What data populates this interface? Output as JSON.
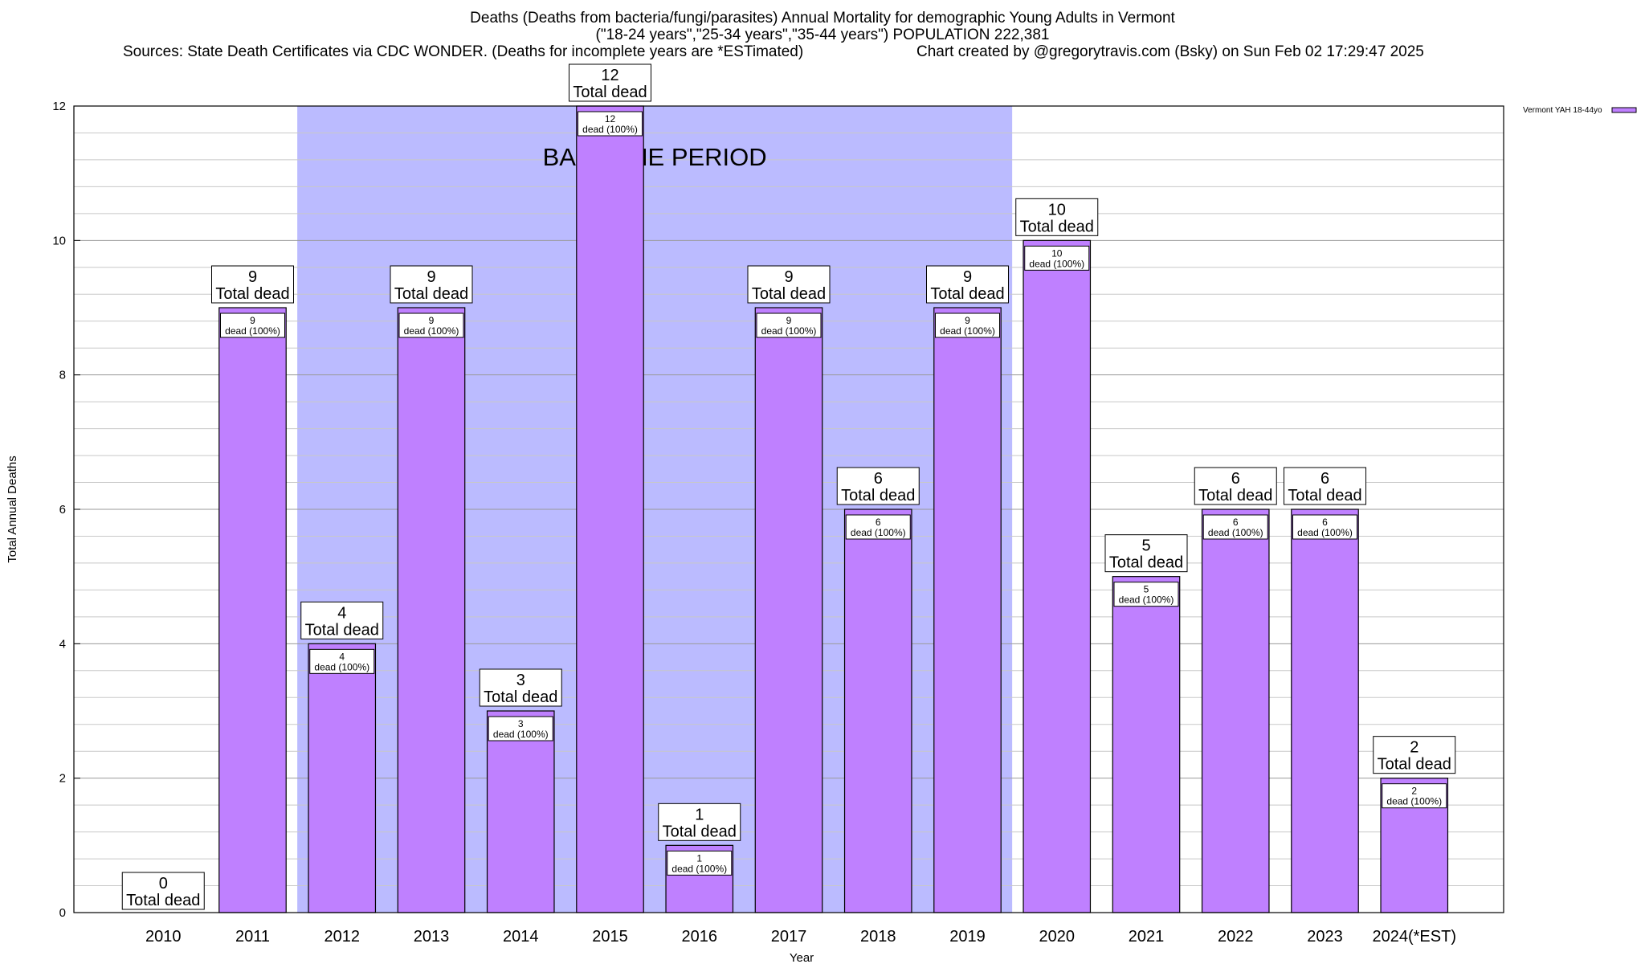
{
  "chart_data": {
    "type": "bar",
    "title": "Deaths (Deaths from bacteria/fungi/parasites) Annual Mortality for demographic Young Adults in Vermont",
    "subtitle": "(\"18-24 years\",\"25-34 years\",\"35-44 years\") POPULATION 222,381",
    "source_note": "Sources: State Death Certificates via CDC WONDER. (Deaths for incomplete years are *ESTimated)",
    "credit": "Chart created by @gregorytravis.com (Bsky) on Sun Feb 02 17:29:47 2025",
    "xlabel": "Year",
    "ylabel": "Total Annual Deaths",
    "ylim": [
      0,
      12
    ],
    "y_ticks": [
      "0",
      "2",
      "4",
      "6",
      "8",
      "10",
      "12"
    ],
    "grid": true,
    "legend_position": "top-right",
    "categories": [
      "2010",
      "2011",
      "2012",
      "2013",
      "2014",
      "2015",
      "2016",
      "2017",
      "2018",
      "2019",
      "2020",
      "2021",
      "2022",
      "2023",
      "2024(*EST)"
    ],
    "series": [
      {
        "name": "Vermont YAH 18-44yo",
        "color": "#bf80ff",
        "values": [
          0,
          9,
          4,
          9,
          3,
          12,
          1,
          9,
          6,
          9,
          10,
          5,
          6,
          6,
          2
        ]
      }
    ],
    "top_label_suffix": "Total dead",
    "inner_label_suffix": "dead (100%)",
    "baseline_period": {
      "label": "BASELINE PERIOD",
      "from": "2012",
      "to": "2019",
      "color": "#bbbbff"
    }
  }
}
